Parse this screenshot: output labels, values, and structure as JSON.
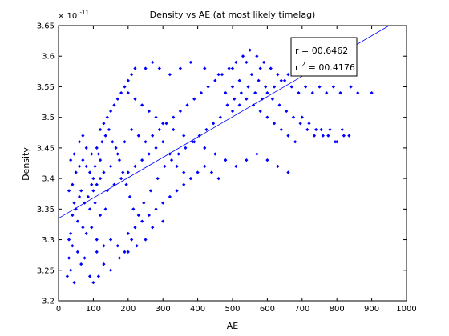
{
  "chart_data": {
    "type": "scatter",
    "title": "Density vs AE (at most likely timelag)",
    "xlabel": "AE",
    "ylabel": "Density",
    "xlim": [
      0,
      1000
    ],
    "ylim": [
      3.2,
      3.65
    ],
    "x_ticks": [
      0,
      100,
      200,
      300,
      400,
      500,
      600,
      700,
      800,
      900,
      1000
    ],
    "y_ticks": [
      3.2,
      3.25,
      3.3,
      3.35,
      3.4,
      3.45,
      3.5,
      3.55,
      3.6,
      3.65
    ],
    "y_exponent_base": "× 10",
    "y_exponent_power": "-11",
    "grid": false,
    "marker_color": "#0000ff",
    "series": [
      {
        "points": [
          [
            25,
            3.24
          ],
          [
            30,
            3.27
          ],
          [
            35,
            3.31
          ],
          [
            40,
            3.34
          ],
          [
            45,
            3.36
          ],
          [
            30,
            3.38
          ],
          [
            40,
            3.39
          ],
          [
            50,
            3.41
          ],
          [
            35,
            3.43
          ],
          [
            45,
            3.44
          ],
          [
            60,
            3.46
          ],
          [
            70,
            3.47
          ],
          [
            80,
            3.45
          ],
          [
            95,
            3.44
          ],
          [
            110,
            3.45
          ],
          [
            120,
            3.43
          ],
          [
            60,
            3.37
          ],
          [
            75,
            3.36
          ],
          [
            90,
            3.35
          ],
          [
            105,
            3.36
          ],
          [
            120,
            3.34
          ],
          [
            135,
            3.35
          ],
          [
            55,
            3.33
          ],
          [
            70,
            3.32
          ],
          [
            80,
            3.31
          ],
          [
            95,
            3.32
          ],
          [
            110,
            3.3
          ],
          [
            40,
            3.29
          ],
          [
            55,
            3.28
          ],
          [
            65,
            3.26
          ],
          [
            75,
            3.27
          ],
          [
            90,
            3.24
          ],
          [
            100,
            3.23
          ],
          [
            115,
            3.24
          ],
          [
            130,
            3.26
          ],
          [
            150,
            3.25
          ],
          [
            175,
            3.27
          ],
          [
            200,
            3.28
          ],
          [
            225,
            3.29
          ],
          [
            250,
            3.3
          ],
          [
            270,
            3.32
          ],
          [
            300,
            3.33
          ],
          [
            140,
            3.38
          ],
          [
            160,
            3.39
          ],
          [
            180,
            3.4
          ],
          [
            200,
            3.41
          ],
          [
            220,
            3.42
          ],
          [
            240,
            3.43
          ],
          [
            260,
            3.44
          ],
          [
            280,
            3.45
          ],
          [
            300,
            3.46
          ],
          [
            320,
            3.44
          ],
          [
            340,
            3.42
          ],
          [
            360,
            3.41
          ],
          [
            380,
            3.4
          ],
          [
            400,
            3.41
          ],
          [
            420,
            3.42
          ],
          [
            440,
            3.41
          ],
          [
            460,
            3.4
          ],
          [
            150,
            3.42
          ],
          [
            170,
            3.44
          ],
          [
            190,
            3.46
          ],
          [
            210,
            3.48
          ],
          [
            230,
            3.47
          ],
          [
            250,
            3.46
          ],
          [
            270,
            3.47
          ],
          [
            290,
            3.48
          ],
          [
            310,
            3.49
          ],
          [
            330,
            3.5
          ],
          [
            350,
            3.51
          ],
          [
            370,
            3.52
          ],
          [
            390,
            3.53
          ],
          [
            410,
            3.54
          ],
          [
            430,
            3.55
          ],
          [
            450,
            3.56
          ],
          [
            470,
            3.57
          ],
          [
            490,
            3.58
          ],
          [
            510,
            3.59
          ],
          [
            530,
            3.6
          ],
          [
            550,
            3.61
          ],
          [
            570,
            3.6
          ],
          [
            590,
            3.59
          ],
          [
            610,
            3.58
          ],
          [
            630,
            3.57
          ],
          [
            650,
            3.56
          ],
          [
            670,
            3.55
          ],
          [
            690,
            3.54
          ],
          [
            710,
            3.55
          ],
          [
            730,
            3.54
          ],
          [
            750,
            3.55
          ],
          [
            770,
            3.54
          ],
          [
            790,
            3.55
          ],
          [
            810,
            3.54
          ],
          [
            840,
            3.55
          ],
          [
            860,
            3.54
          ],
          [
            900,
            3.54
          ],
          [
            700,
            3.5
          ],
          [
            720,
            3.49
          ],
          [
            740,
            3.48
          ],
          [
            760,
            3.47
          ],
          [
            780,
            3.48
          ],
          [
            800,
            3.46
          ],
          [
            820,
            3.47
          ],
          [
            250,
            3.58
          ],
          [
            270,
            3.59
          ],
          [
            290,
            3.58
          ],
          [
            320,
            3.57
          ],
          [
            350,
            3.58
          ],
          [
            380,
            3.59
          ],
          [
            420,
            3.58
          ],
          [
            460,
            3.57
          ],
          [
            500,
            3.58
          ],
          [
            540,
            3.59
          ],
          [
            580,
            3.58
          ],
          [
            200,
            3.54
          ],
          [
            220,
            3.53
          ],
          [
            240,
            3.52
          ],
          [
            260,
            3.51
          ],
          [
            280,
            3.5
          ],
          [
            300,
            3.49
          ],
          [
            330,
            3.48
          ],
          [
            360,
            3.47
          ],
          [
            390,
            3.46
          ],
          [
            420,
            3.45
          ],
          [
            450,
            3.44
          ],
          [
            480,
            3.43
          ],
          [
            510,
            3.42
          ],
          [
            540,
            3.43
          ],
          [
            570,
            3.44
          ],
          [
            600,
            3.43
          ],
          [
            630,
            3.42
          ],
          [
            660,
            3.41
          ],
          [
            200,
            3.31
          ],
          [
            220,
            3.32
          ],
          [
            240,
            3.33
          ],
          [
            260,
            3.34
          ],
          [
            280,
            3.35
          ],
          [
            300,
            3.36
          ],
          [
            320,
            3.37
          ],
          [
            340,
            3.38
          ],
          [
            360,
            3.39
          ],
          [
            380,
            3.4
          ],
          [
            500,
            3.51
          ],
          [
            520,
            3.52
          ],
          [
            540,
            3.53
          ],
          [
            560,
            3.52
          ],
          [
            580,
            3.51
          ],
          [
            600,
            3.5
          ],
          [
            620,
            3.49
          ],
          [
            640,
            3.48
          ],
          [
            660,
            3.47
          ],
          [
            680,
            3.46
          ],
          [
            480,
            3.54
          ],
          [
            500,
            3.55
          ],
          [
            520,
            3.56
          ],
          [
            545,
            3.55
          ],
          [
            565,
            3.54
          ],
          [
            585,
            3.53
          ],
          [
            600,
            3.54
          ],
          [
            620,
            3.55
          ],
          [
            640,
            3.56
          ],
          [
            660,
            3.57
          ],
          [
            680,
            3.58
          ],
          [
            700,
            3.59
          ],
          [
            720,
            3.58
          ],
          [
            120,
            3.48
          ],
          [
            130,
            3.49
          ],
          [
            140,
            3.5
          ],
          [
            150,
            3.51
          ],
          [
            160,
            3.52
          ],
          [
            170,
            3.53
          ],
          [
            180,
            3.54
          ],
          [
            190,
            3.55
          ],
          [
            200,
            3.56
          ],
          [
            210,
            3.57
          ],
          [
            220,
            3.58
          ],
          [
            110,
            3.28
          ],
          [
            130,
            3.29
          ],
          [
            150,
            3.3
          ],
          [
            170,
            3.29
          ],
          [
            190,
            3.28
          ],
          [
            210,
            3.3
          ],
          [
            100,
            3.38
          ],
          [
            110,
            3.39
          ],
          [
            120,
            3.4
          ],
          [
            130,
            3.41
          ],
          [
            60,
            3.42
          ],
          [
            70,
            3.43
          ],
          [
            80,
            3.42
          ],
          [
            90,
            3.41
          ],
          [
            100,
            3.4
          ],
          [
            30,
            3.3
          ],
          [
            35,
            3.25
          ],
          [
            45,
            3.23
          ],
          [
            50,
            3.35
          ],
          [
            65,
            3.38
          ],
          [
            85,
            3.37
          ],
          [
            95,
            3.39
          ],
          [
            105,
            3.42
          ],
          [
            115,
            3.44
          ],
          [
            125,
            3.46
          ],
          [
            135,
            3.47
          ],
          [
            145,
            3.48
          ],
          [
            155,
            3.46
          ],
          [
            165,
            3.45
          ],
          [
            175,
            3.43
          ],
          [
            185,
            3.41
          ],
          [
            195,
            3.39
          ],
          [
            205,
            3.37
          ],
          [
            215,
            3.35
          ],
          [
            230,
            3.34
          ],
          [
            245,
            3.36
          ],
          [
            265,
            3.38
          ],
          [
            285,
            3.4
          ],
          [
            305,
            3.42
          ],
          [
            325,
            3.43
          ],
          [
            345,
            3.44
          ],
          [
            365,
            3.45
          ],
          [
            385,
            3.46
          ],
          [
            405,
            3.47
          ],
          [
            425,
            3.48
          ],
          [
            445,
            3.49
          ],
          [
            465,
            3.5
          ],
          [
            485,
            3.52
          ],
          [
            505,
            3.53
          ],
          [
            525,
            3.54
          ],
          [
            555,
            3.57
          ],
          [
            575,
            3.56
          ],
          [
            595,
            3.55
          ],
          [
            615,
            3.53
          ],
          [
            635,
            3.52
          ],
          [
            655,
            3.51
          ],
          [
            675,
            3.5
          ],
          [
            695,
            3.49
          ],
          [
            715,
            3.48
          ],
          [
            735,
            3.47
          ],
          [
            755,
            3.48
          ],
          [
            775,
            3.47
          ],
          [
            795,
            3.46
          ],
          [
            815,
            3.48
          ],
          [
            835,
            3.47
          ]
        ]
      }
    ],
    "trendline": {
      "x": [
        0,
        950
      ],
      "y": [
        3.335,
        3.65
      ]
    },
    "annotation": {
      "r_label": "r =  00.6462",
      "r2_prefix": "r",
      "r2_power": "2",
      "r2_value": " = 00.4176"
    }
  }
}
